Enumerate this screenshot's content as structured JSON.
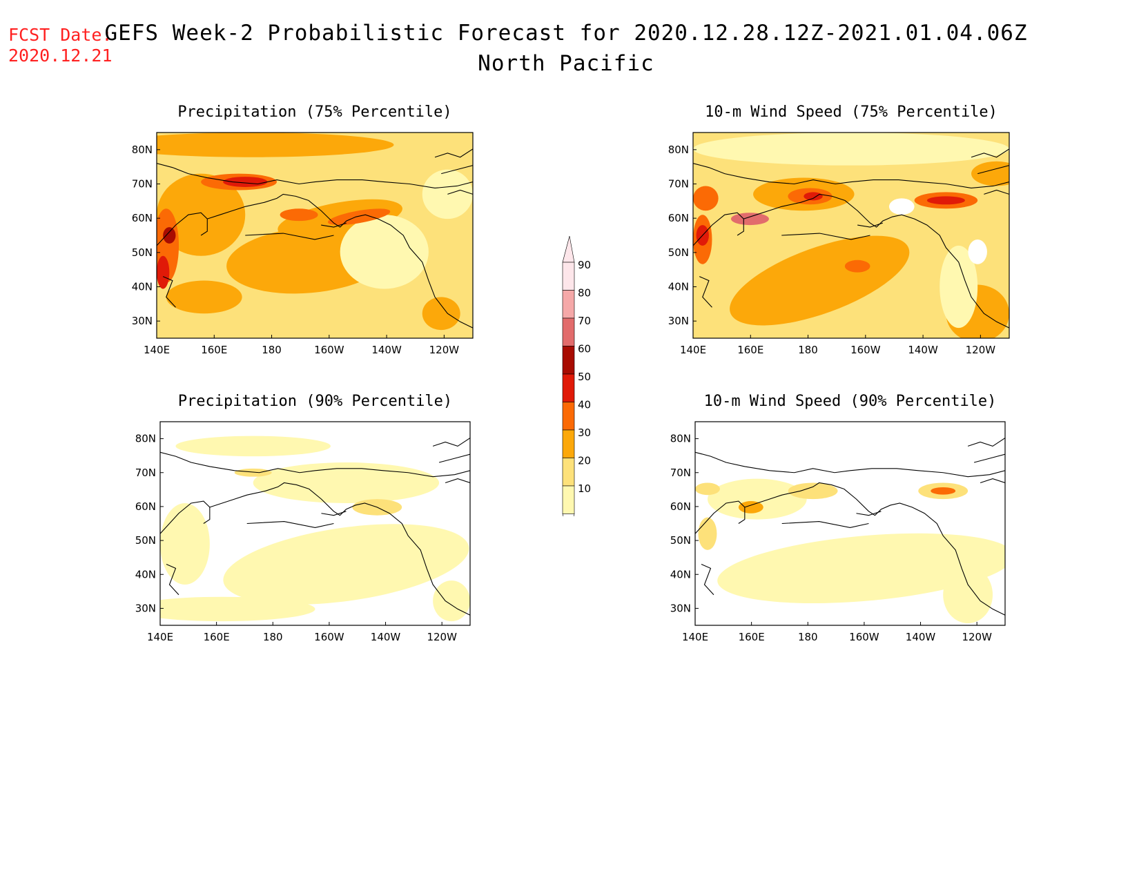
{
  "header": {
    "fcst_label": "FCST Date:",
    "fcst_date": "2020.12.21",
    "title": "GEFS Week-2 Probabilistic Forecast for 2020.12.28.12Z-2021.01.04.06Z",
    "subtitle": "North Pacific"
  },
  "axes": {
    "lon_ticks": [
      "140E",
      "160E",
      "180",
      "160W",
      "140W",
      "120W"
    ],
    "lat_ticks": [
      "80N",
      "70N",
      "60N",
      "50N",
      "40N",
      "30N"
    ]
  },
  "panels": [
    {
      "id": "precip-75",
      "title": "Precipitation (75% Percentile)",
      "intensity": "high"
    },
    {
      "id": "wind-75",
      "title": "10-m Wind Speed (75% Percentile)",
      "intensity": "high"
    },
    {
      "id": "precip-90",
      "title": "Precipitation (90% Percentile)",
      "intensity": "low"
    },
    {
      "id": "wind-90",
      "title": "10-m Wind Speed (90% Percentile)",
      "intensity": "low"
    }
  ],
  "colorbar": {
    "labels": [
      "90",
      "80",
      "70",
      "60",
      "50",
      "40",
      "30",
      "20",
      "10"
    ],
    "colors": {
      "10-20": "#fff8b0",
      "20-30": "#fde17a",
      "30-40": "#fca80a",
      "40-50": "#fb6a05",
      "50-60": "#e01a08",
      "60-70": "#a80c02",
      "70-80": "#e26c6c",
      "80-90": "#f5a8a8",
      "90-100": "#fde6ea"
    }
  }
}
